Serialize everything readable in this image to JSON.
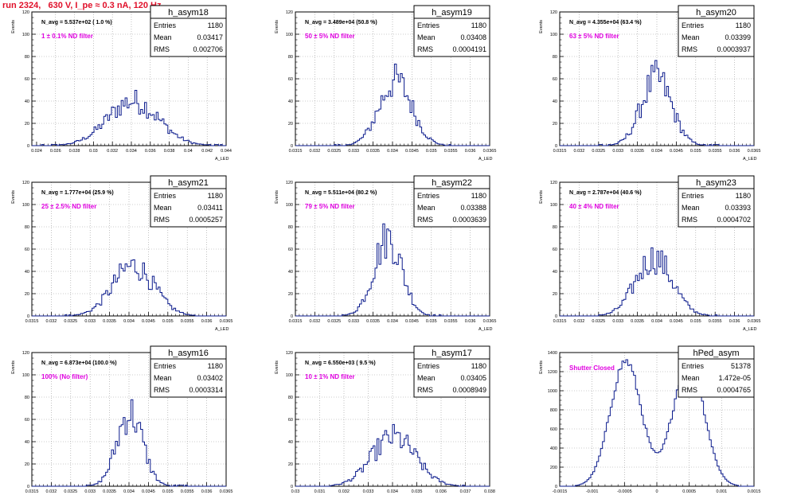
{
  "run_title": "run 2324,   630 V, I_pe ≈ 0.3 nA, 120 Hz",
  "colors": {
    "hist": "#0a1a8c",
    "filter_label": "#e000e0",
    "title": "#e0102a",
    "axis": "#000000",
    "grid": "#9a9a9a"
  },
  "stats_labels": {
    "entries": "Entries",
    "mean": "Mean",
    "rms": "RMS"
  },
  "x_axis_label": "A_LED",
  "y_axis_label": "Events",
  "chart_data": [
    {
      "type": "bar",
      "name": "h_asym18",
      "navg": "N_avg = 5.537e+02 ( 1.0 %)",
      "filter": "1 ± 0.1% ND filter",
      "stats": {
        "entries": "1180",
        "mean": "0.03417",
        "rms": "0.002706"
      },
      "xlim": [
        0.0235,
        0.044
      ],
      "ylim": [
        0,
        120
      ],
      "xticks": [
        "0.024",
        "0.026",
        "0.028",
        "0.03",
        "0.032",
        "0.034",
        "0.036",
        "0.038",
        "0.04",
        "0.042",
        "0.044"
      ],
      "xtick_values": [
        0.024,
        0.026,
        0.028,
        0.03,
        0.032,
        0.034,
        0.036,
        0.038,
        0.04,
        0.042,
        0.044
      ],
      "yticks": [
        0,
        20,
        40,
        60,
        80,
        100,
        120
      ],
      "hist": {
        "center": 0.03417,
        "sigma": 0.0027,
        "peak": 40,
        "left": 0.0245,
        "right": 0.0435,
        "bins": 100
      }
    },
    {
      "type": "bar",
      "name": "h_asym19",
      "navg": "N_avg = 3.489e+04 (50.8 %)",
      "filter": "50 ± 5% ND filter",
      "stats": {
        "entries": "1180",
        "mean": "0.03408",
        "rms": "0.0004191"
      },
      "xlim": [
        0.0315,
        0.0365
      ],
      "ylim": [
        0,
        120
      ],
      "xticks": [
        "0.0315",
        "0.032",
        "0.0325",
        "0.033",
        "0.0335",
        "0.034",
        "0.0345",
        "0.035",
        "0.0355",
        "0.036",
        "0.0365"
      ],
      "xtick_values": [
        0.0315,
        0.032,
        0.0325,
        0.033,
        0.0335,
        0.034,
        0.0345,
        0.035,
        0.0355,
        0.036,
        0.0365
      ],
      "yticks": [
        0,
        20,
        40,
        60,
        80,
        100,
        120
      ],
      "hist": {
        "center": 0.03408,
        "sigma": 0.00042,
        "peak": 58,
        "left": 0.0325,
        "right": 0.0358,
        "bins": 100
      }
    },
    {
      "type": "bar",
      "name": "h_asym20",
      "navg": "N_avg = 4.355e+04 (63.4 %)",
      "filter": "63 ± 5% ND filter",
      "stats": {
        "entries": "1180",
        "mean": "0.03399",
        "rms": "0.0003937"
      },
      "xlim": [
        0.0315,
        0.0365
      ],
      "ylim": [
        0,
        120
      ],
      "xticks": [
        "0.0315",
        "0.032",
        "0.0325",
        "0.033",
        "0.0335",
        "0.034",
        "0.0345",
        "0.035",
        "0.0355",
        "0.036",
        "0.0365"
      ],
      "xtick_values": [
        0.0315,
        0.032,
        0.0325,
        0.033,
        0.0335,
        0.034,
        0.0345,
        0.035,
        0.0355,
        0.036,
        0.0365
      ],
      "yticks": [
        0,
        20,
        40,
        60,
        80,
        100,
        120
      ],
      "hist": {
        "center": 0.03399,
        "sigma": 0.00039,
        "peak": 60,
        "left": 0.0325,
        "right": 0.0356,
        "bins": 100
      }
    },
    {
      "type": "bar",
      "name": "h_asym21",
      "navg": "N_avg = 1.777e+04 (25.9 %)",
      "filter": "25 ± 2.5% ND filter",
      "stats": {
        "entries": "1180",
        "mean": "0.03411",
        "rms": "0.0005257"
      },
      "xlim": [
        0.0315,
        0.0365
      ],
      "ylim": [
        0,
        120
      ],
      "xticks": [
        "0.0315",
        "0.032",
        "0.0325",
        "0.033",
        "0.0335",
        "0.034",
        "0.0345",
        "0.035",
        "0.0355",
        "0.036",
        "0.0365"
      ],
      "xtick_values": [
        0.0315,
        0.032,
        0.0325,
        0.033,
        0.0335,
        0.034,
        0.0345,
        0.035,
        0.0355,
        0.036,
        0.0365
      ],
      "yticks": [
        0,
        20,
        40,
        60,
        80,
        100,
        120
      ],
      "hist": {
        "center": 0.03411,
        "sigma": 0.00053,
        "peak": 45,
        "left": 0.0323,
        "right": 0.0359,
        "bins": 100
      }
    },
    {
      "type": "bar",
      "name": "h_asym22",
      "navg": "N_avg = 5.511e+04 (80.2 %)",
      "filter": "79 ± 5% ND filter",
      "stats": {
        "entries": "1180",
        "mean": "0.03388",
        "rms": "0.0003639"
      },
      "xlim": [
        0.0315,
        0.0365
      ],
      "ylim": [
        0,
        120
      ],
      "xticks": [
        "0.0315",
        "0.032",
        "0.0325",
        "0.033",
        "0.0335",
        "0.034",
        "0.0345",
        "0.035",
        "0.0355",
        "0.036",
        "0.0365"
      ],
      "xtick_values": [
        0.0315,
        0.032,
        0.0325,
        0.033,
        0.0335,
        0.034,
        0.0345,
        0.035,
        0.0355,
        0.036,
        0.0365
      ],
      "yticks": [
        0,
        20,
        40,
        60,
        80,
        100,
        120
      ],
      "hist": {
        "center": 0.03388,
        "sigma": 0.00036,
        "peak": 70,
        "left": 0.0326,
        "right": 0.0356,
        "bins": 100
      }
    },
    {
      "type": "bar",
      "name": "h_asym23",
      "navg": "N_avg = 2.787e+04 (40.6 %)",
      "filter": "40 ± 4% ND filter",
      "stats": {
        "entries": "1180",
        "mean": "0.03393",
        "rms": "0.0004702"
      },
      "xlim": [
        0.0315,
        0.0365
      ],
      "ylim": [
        0,
        120
      ],
      "xticks": [
        "0.0315",
        "0.032",
        "0.0325",
        "0.033",
        "0.0335",
        "0.034",
        "0.0345",
        "0.035",
        "0.0355",
        "0.036",
        "0.0365"
      ],
      "xtick_values": [
        0.0315,
        0.032,
        0.0325,
        0.033,
        0.0335,
        0.034,
        0.0345,
        0.035,
        0.0355,
        0.036,
        0.0365
      ],
      "yticks": [
        0,
        20,
        40,
        60,
        80,
        100,
        120
      ],
      "hist": {
        "center": 0.03393,
        "sigma": 0.00047,
        "peak": 52,
        "left": 0.0325,
        "right": 0.0358,
        "bins": 100
      }
    },
    {
      "type": "bar",
      "name": "h_asym16",
      "navg": "N_avg = 6.873e+04 (100.0 %)",
      "filter": "100% (No filter)",
      "stats": {
        "entries": "1180",
        "mean": "0.03402",
        "rms": "0.0003314"
      },
      "xlim": [
        0.0315,
        0.0365
      ],
      "ylim": [
        0,
        120
      ],
      "xticks": [
        "0.0315",
        "0.032",
        "0.0325",
        "0.033",
        "0.0335",
        "0.034",
        "0.0345",
        "0.035",
        "0.0355",
        "0.036",
        "0.0365"
      ],
      "xtick_values": [
        0.0315,
        0.032,
        0.0325,
        0.033,
        0.0335,
        0.034,
        0.0345,
        0.035,
        0.0355,
        0.036,
        0.0365
      ],
      "yticks": [
        0,
        20,
        40,
        60,
        80,
        100,
        120
      ],
      "hist": {
        "center": 0.03402,
        "sigma": 0.00033,
        "peak": 66,
        "left": 0.0328,
        "right": 0.0355,
        "bins": 100
      }
    },
    {
      "type": "bar",
      "name": "h_asym17",
      "navg": "N_avg = 6.550e+03 ( 9.5 %)",
      "filter": "10 ± 1% ND filter",
      "stats": {
        "entries": "1180",
        "mean": "0.03405",
        "rms": "0.0008949"
      },
      "xlim": [
        0.03,
        0.038
      ],
      "ylim": [
        0,
        120
      ],
      "xticks": [
        "0.03",
        "0.031",
        "0.032",
        "0.033",
        "0.034",
        "0.035",
        "0.036",
        "0.037",
        "0.038"
      ],
      "xtick_values": [
        0.03,
        0.031,
        0.032,
        0.033,
        0.034,
        0.035,
        0.036,
        0.037,
        0.038
      ],
      "yticks": [
        0,
        20,
        40,
        60,
        80,
        100,
        120
      ],
      "hist": {
        "center": 0.03405,
        "sigma": 0.0009,
        "peak": 44,
        "left": 0.0312,
        "right": 0.0372,
        "bins": 100
      }
    },
    {
      "type": "bar",
      "name": "hPed_asym",
      "navg": "",
      "filter": "Shutter Closed",
      "stats": {
        "entries": "51378",
        "mean": "1.472e-05",
        "rms": "0.0004765"
      },
      "xlim": [
        -0.0015,
        0.0015
      ],
      "ylim": [
        0,
        1400
      ],
      "xticks": [
        "-0.0015",
        "-0.001",
        "-0.0005",
        "0",
        "0.0005",
        "0.001",
        "0.0015"
      ],
      "xtick_values": [
        -0.0015,
        -0.001,
        -0.0005,
        0,
        0.0005,
        0.001,
        0.0015
      ],
      "yticks": [
        0,
        200,
        400,
        600,
        800,
        1000,
        1200,
        1400
      ],
      "hist": {
        "bimodal": true,
        "centers": [
          -0.00048,
          0.00049
        ],
        "sigma": 0.00024,
        "peak": 1310,
        "valley": 520,
        "left": -0.00125,
        "right": 0.00125,
        "bins": 100
      }
    }
  ]
}
